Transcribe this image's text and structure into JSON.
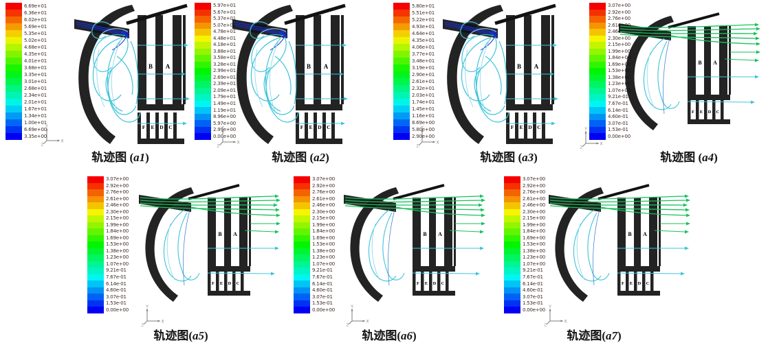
{
  "colors": {
    "background": "#ffffff",
    "mesh_black": "#121212",
    "streamline_cyan": "#3cc4da",
    "streamline_light_blue": "#9bdcec",
    "inlet_jet_blue": "#1b2fc4",
    "inlet_jet_green": "#17c25b",
    "colorbar_top": "#ff0000",
    "colorbar_bottom": "#0000ff",
    "tick_text": "#3d2b26",
    "caption_text": "#121212"
  },
  "axis_triad": {
    "x": "X",
    "y": "Y",
    "z": "Z"
  },
  "mesh_labels": [
    "B",
    "A",
    "F",
    "E",
    "D",
    "C"
  ],
  "panels": [
    {
      "name": "a1",
      "variant": "swirl",
      "caption_prefix": "轨迹图 (",
      "caption_index": "a1",
      "caption_suffix": ")"
    },
    {
      "name": "a2",
      "variant": "swirl",
      "caption_prefix": "轨迹图 (",
      "caption_index": "a2",
      "caption_suffix": ")"
    },
    {
      "name": "a3",
      "variant": "swirl",
      "caption_prefix": "轨迹图 (",
      "caption_index": "a3",
      "caption_suffix": ")"
    },
    {
      "name": "a4",
      "variant": "jet",
      "caption_prefix": "轨迹图 (",
      "caption_index": "a4",
      "caption_suffix": ")"
    },
    {
      "name": "a5",
      "variant": "jet",
      "caption_prefix": "轨迹图(",
      "caption_index": "a5",
      "caption_suffix": ")"
    },
    {
      "name": "a6",
      "variant": "jet",
      "caption_prefix": "轨迹图(",
      "caption_index": "a6",
      "caption_suffix": ")"
    },
    {
      "name": "a7",
      "variant": "jet",
      "caption_prefix": "轨迹图(",
      "caption_index": "a7",
      "caption_suffix": ")"
    }
  ],
  "chart_data": [
    {
      "type": "heatmap",
      "title": "轨迹图 (a1)",
      "legend_position": "left",
      "colorbar_min": 3.35,
      "colorbar_max": 66.9,
      "colorbar_ticks": [
        "6.69e+01",
        "6.36e+01",
        "6.02e+01",
        "5.69e+01",
        "5.35e+01",
        "5.02e+01",
        "4.68e+01",
        "4.35e+01",
        "4.01e+01",
        "3.68e+01",
        "3.35e+01",
        "3.01e+01",
        "2.68e+01",
        "2.34e+01",
        "2.01e+01",
        "1.67e+01",
        "1.34e+01",
        "1.00e+01",
        "6.69e+00",
        "3.35e+00"
      ]
    },
    {
      "type": "heatmap",
      "title": "轨迹图 (a2)",
      "legend_position": "left",
      "colorbar_min": 0.0,
      "colorbar_max": 59.7,
      "colorbar_ticks": [
        "5.97e+01",
        "5.67e+01",
        "5.37e+01",
        "5.07e+01",
        "4.78e+01",
        "4.48e+01",
        "4.18e+01",
        "3.88e+01",
        "3.58e+01",
        "3.28e+01",
        "2.99e+01",
        "2.69e+01",
        "2.39e+01",
        "2.09e+01",
        "1.79e+01",
        "1.49e+01",
        "1.19e+01",
        "8.96e+00",
        "5.97e+00",
        "2.99e+00",
        "0.00e+00"
      ]
    },
    {
      "type": "heatmap",
      "title": "轨迹图 (a3)",
      "legend_position": "left",
      "colorbar_min": 2.9,
      "colorbar_max": 58.0,
      "colorbar_ticks": [
        "5.80e+01",
        "5.51e+01",
        "5.22e+01",
        "4.93e+01",
        "4.64e+01",
        "4.35e+01",
        "4.06e+01",
        "3.77e+01",
        "3.48e+01",
        "3.19e+01",
        "2.90e+01",
        "2.61e+01",
        "2.32e+01",
        "2.03e+01",
        "1.74e+01",
        "1.45e+01",
        "1.16e+01",
        "8.69e+00",
        "5.80e+00",
        "2.90e+00"
      ]
    },
    {
      "type": "heatmap",
      "title": "轨迹图 (a4)",
      "legend_position": "left",
      "colorbar_min": 0.0,
      "colorbar_max": 3.07,
      "colorbar_ticks": [
        "3.07e+00",
        "2.92e+00",
        "2.76e+00",
        "2.61e+00",
        "2.46e+00",
        "2.30e+00",
        "2.15e+00",
        "1.99e+00",
        "1.84e+00",
        "1.69e+00",
        "1.53e+00",
        "1.38e+00",
        "1.23e+00",
        "1.07e+00",
        "9.21e-01",
        "7.67e-01",
        "6.14e-01",
        "4.60e-01",
        "3.07e-01",
        "1.53e-01",
        "0.00e+00"
      ]
    },
    {
      "type": "heatmap",
      "title": "轨迹图(a5)",
      "legend_position": "left",
      "colorbar_min": 0.0,
      "colorbar_max": 3.07,
      "colorbar_ticks": [
        "3.07e+00",
        "2.92e+00",
        "2.76e+00",
        "2.61e+00",
        "2.46e+00",
        "2.30e+00",
        "2.15e+00",
        "1.99e+00",
        "1.84e+00",
        "1.69e+00",
        "1.53e+00",
        "1.38e+00",
        "1.23e+00",
        "1.07e+00",
        "9.21e-01",
        "7.67e-01",
        "6.14e-01",
        "4.60e-01",
        "3.07e-01",
        "1.53e-01",
        "0.00e+00"
      ]
    },
    {
      "type": "heatmap",
      "title": "轨迹图(a6)",
      "legend_position": "left",
      "colorbar_min": 0.0,
      "colorbar_max": 3.07,
      "colorbar_ticks": [
        "3.07e+00",
        "2.92e+00",
        "2.76e+00",
        "2.61e+00",
        "2.46e+00",
        "2.30e+00",
        "2.15e+00",
        "1.99e+00",
        "1.84e+00",
        "1.69e+00",
        "1.53e+00",
        "1.38e+00",
        "1.23e+00",
        "1.07e+00",
        "9.21e-01",
        "7.67e-01",
        "6.14e-01",
        "4.60e-01",
        "3.07e-01",
        "1.53e-01",
        "0.00e+00"
      ]
    },
    {
      "type": "heatmap",
      "title": "轨迹图(a7)",
      "legend_position": "left",
      "colorbar_min": 0.0,
      "colorbar_max": 3.07,
      "colorbar_ticks": [
        "3.07e+00",
        "2.92e+00",
        "2.76e+00",
        "2.61e+00",
        "2.46e+00",
        "2.30e+00",
        "2.15e+00",
        "1.99e+00",
        "1.84e+00",
        "1.69e+00",
        "1.53e+00",
        "1.38e+00",
        "1.23e+00",
        "1.07e+00",
        "9.21e-01",
        "7.67e-01",
        "6.14e-01",
        "4.60e-01",
        "3.07e-01",
        "1.53e-01",
        "0.00e+00"
      ]
    }
  ]
}
